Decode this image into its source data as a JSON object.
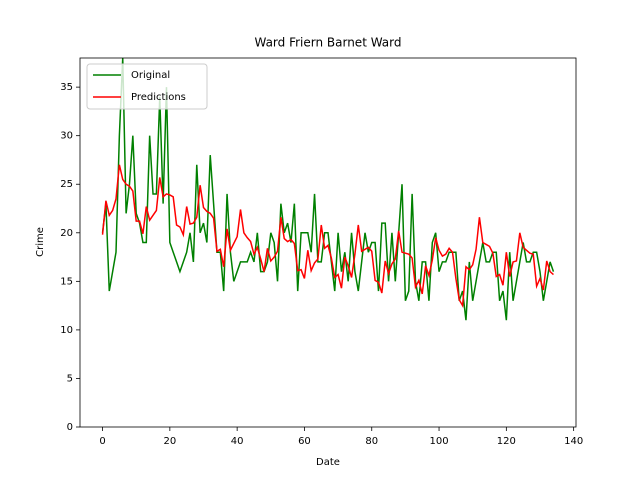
{
  "chart_data": {
    "type": "line",
    "title": "Ward Friern Barnet Ward",
    "xlabel": "Date",
    "ylabel": "Crime",
    "x": [
      0,
      1,
      2,
      3,
      4,
      5,
      6,
      7,
      8,
      9,
      10,
      11,
      12,
      13,
      14,
      15,
      16,
      17,
      18,
      19,
      20,
      21,
      22,
      23,
      24,
      25,
      26,
      27,
      28,
      29,
      30,
      31,
      32,
      33,
      34,
      35,
      36,
      37,
      38,
      39,
      40,
      41,
      42,
      43,
      44,
      45,
      46,
      47,
      48,
      49,
      50,
      51,
      52,
      53,
      54,
      55,
      56,
      57,
      58,
      59,
      60,
      61,
      62,
      63,
      64,
      65,
      66,
      67,
      68,
      69,
      70,
      71,
      72,
      73,
      74,
      75,
      76,
      77,
      78,
      79,
      80,
      81,
      82,
      83,
      84,
      85,
      86,
      87,
      88,
      89,
      90,
      91,
      92,
      93,
      94,
      95,
      96,
      97,
      98,
      99,
      100,
      101,
      102,
      103,
      104,
      105,
      106,
      107,
      108,
      109,
      110,
      111,
      112,
      113,
      114,
      115,
      116,
      117,
      118,
      119,
      120,
      121,
      122,
      123,
      124,
      125,
      126,
      127,
      128,
      129,
      130,
      131,
      132,
      133,
      134
    ],
    "series": [
      {
        "name": "Original",
        "color": "#008000",
        "values": [
          20,
          23,
          14,
          16,
          18,
          30,
          38,
          22,
          25,
          30,
          22,
          21,
          19,
          19,
          30,
          24,
          24,
          34,
          23,
          35,
          19,
          18,
          17,
          16,
          17,
          18,
          20,
          17,
          27,
          20,
          21,
          19,
          28,
          23,
          18,
          18,
          14,
          24,
          18,
          15,
          16,
          17,
          17,
          17,
          18,
          17,
          20,
          16,
          16,
          17,
          20,
          19,
          15,
          23,
          20,
          21,
          19,
          23,
          14,
          20,
          20,
          20,
          18,
          24,
          17,
          17,
          20,
          20,
          17,
          14,
          20,
          16,
          18,
          15,
          20,
          16,
          14,
          17,
          20,
          18,
          19,
          19,
          14,
          21,
          21,
          15,
          20,
          15,
          20,
          25,
          13,
          14,
          24,
          15,
          13,
          17,
          17,
          13,
          19,
          20,
          16,
          17,
          17,
          18,
          18,
          18,
          13,
          14,
          11,
          17,
          13,
          15,
          17,
          19,
          17,
          17,
          18,
          18,
          13,
          14,
          11,
          18,
          13,
          15,
          17,
          19,
          17,
          17,
          18,
          18,
          16,
          13,
          15,
          17,
          16
        ]
      },
      {
        "name": "Predictions",
        "color": "#ff0000",
        "values": [
          19.8,
          23.3,
          21.8,
          22.3,
          23.5,
          27,
          25.5,
          25,
          24.8,
          24.3,
          21.2,
          21.2,
          19.9,
          22.7,
          21.3,
          21.8,
          22.3,
          25.7,
          23.7,
          24,
          23.9,
          23.7,
          20.8,
          20.6,
          19.8,
          22.7,
          20.9,
          21,
          21.6,
          24.9,
          22.6,
          22.2,
          22,
          21.5,
          18.1,
          18.3,
          16.5,
          20.4,
          18.2,
          18.9,
          19.6,
          22.4,
          20,
          19.5,
          19.1,
          17.8,
          18.5,
          17.3,
          16,
          18.4,
          17.1,
          17.5,
          18.1,
          21.6,
          19.4,
          19.1,
          19.3,
          18.9,
          16.1,
          16.2,
          15.3,
          18.2,
          16.1,
          16.9,
          17.3,
          20.8,
          18.4,
          18.7,
          17.4,
          15.4,
          15.7,
          14.3,
          17.5,
          16.6,
          15.4,
          17.8,
          20.8,
          18.1,
          18.3,
          18.5,
          18.1,
          15.1,
          14.9,
          13.8,
          17.1,
          15.8,
          16.8,
          17.3,
          20.2,
          18,
          17.9,
          17.8,
          17.4,
          14.4,
          15.1,
          13.7,
          16.6,
          15.6,
          17.2,
          19.5,
          18.2,
          17.6,
          17.8,
          18.4,
          18,
          15.3,
          13.1,
          12.5,
          16.5,
          16.2,
          16.7,
          18.3,
          21.6,
          19,
          18.8,
          18.6,
          17.9,
          15.5,
          15.7,
          14.6,
          18,
          15.5,
          17,
          17.1,
          20,
          18.5,
          18.2,
          17.9,
          17.8,
          14.5,
          15.3,
          14.1,
          17.1,
          16,
          15.7
        ]
      }
    ],
    "xlim": [
      -6.7,
      140.7
    ],
    "xticks": [
      0,
      20,
      40,
      60,
      80,
      100,
      120,
      140
    ],
    "ylim": [
      0,
      38
    ],
    "yticks": [
      0,
      5,
      10,
      15,
      20,
      25,
      30,
      35
    ],
    "legend": "upper left"
  }
}
